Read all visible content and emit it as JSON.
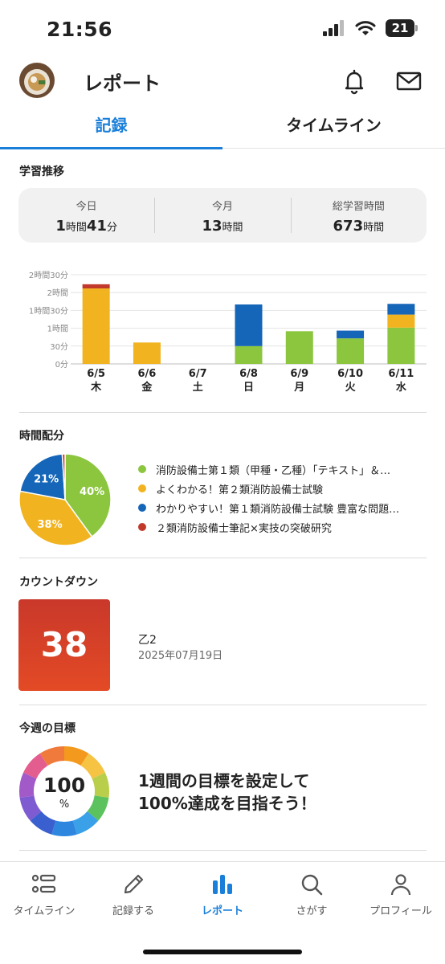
{
  "status_bar": {
    "time": "21:56",
    "battery": "21"
  },
  "header": {
    "title": "レポート"
  },
  "tabs": [
    {
      "label": "記録"
    },
    {
      "label": "タイムライン"
    }
  ],
  "progress": {
    "title": "学習推移",
    "today_label": "今日",
    "today_h": "1",
    "today_h_unit": "時間",
    "today_m": "41",
    "today_m_unit": "分",
    "month_label": "今月",
    "month_h": "13",
    "month_unit": "時間",
    "total_label": "総学習時間",
    "total_h": "673",
    "total_unit": "時間"
  },
  "chart_data": {
    "type": "bar",
    "stacked": true,
    "y_ticks_minutes": [
      0,
      30,
      60,
      90,
      120,
      150
    ],
    "y_tick_labels": [
      "0分",
      "30分",
      "1時間",
      "1時間30分",
      "2時間",
      "2時間30分"
    ],
    "ylim": [
      0,
      150
    ],
    "categories": [
      "6/5",
      "6/6",
      "6/7",
      "6/8",
      "6/9",
      "6/10",
      "6/11"
    ],
    "weekdays": [
      "木",
      "金",
      "土",
      "日",
      "月",
      "火",
      "水"
    ],
    "series": [
      {
        "color": "#8cc63f",
        "values": [
          0,
          0,
          0,
          30,
          55,
          43,
          61
        ]
      },
      {
        "color": "#f2b320",
        "values": [
          127,
          36,
          0,
          0,
          0,
          0,
          22
        ]
      },
      {
        "color": "#1565b8",
        "values": [
          0,
          0,
          0,
          70,
          0,
          13,
          18
        ]
      },
      {
        "color": "#c0392b",
        "values": [
          7,
          0,
          0,
          0,
          0,
          0,
          0
        ]
      }
    ]
  },
  "distribution": {
    "title": "時間配分",
    "pie": [
      {
        "label": "40%",
        "value": 40,
        "color": "#8cc63f"
      },
      {
        "label": "38%",
        "value": 38,
        "color": "#f2b320"
      },
      {
        "label": "21%",
        "value": 21,
        "color": "#1565b8"
      },
      {
        "label": "",
        "value": 1,
        "color": "#c0392b"
      }
    ],
    "legend": [
      {
        "text": "消防設備士第１類（甲種・乙種）「テキスト」＆…",
        "color": "#8cc63f"
      },
      {
        "text": "よくわかる！第２類消防設備士試験",
        "color": "#f2b320"
      },
      {
        "text": "わかりやすい！第１類消防設備士試験 豊富な問題…",
        "color": "#1565b8"
      },
      {
        "text": "２類消防設備士筆記×実技の突破研究",
        "color": "#c0392b"
      }
    ]
  },
  "countdown": {
    "title": "カウントダウン",
    "days": "38",
    "name": "乙2",
    "date": "2025年07月19日"
  },
  "goal": {
    "title": "今週の目標",
    "percent": "100",
    "unit": "%",
    "line1": "1週間の目標を設定して",
    "line2": "100%達成を目指そう！"
  },
  "nav": [
    {
      "label": "タイムライン",
      "icon": "list-icon"
    },
    {
      "label": "記録する",
      "icon": "pencil-icon"
    },
    {
      "label": "レポート",
      "icon": "bar-chart-icon"
    },
    {
      "label": "さがす",
      "icon": "search-icon"
    },
    {
      "label": "プロフィール",
      "icon": "person-icon"
    }
  ]
}
